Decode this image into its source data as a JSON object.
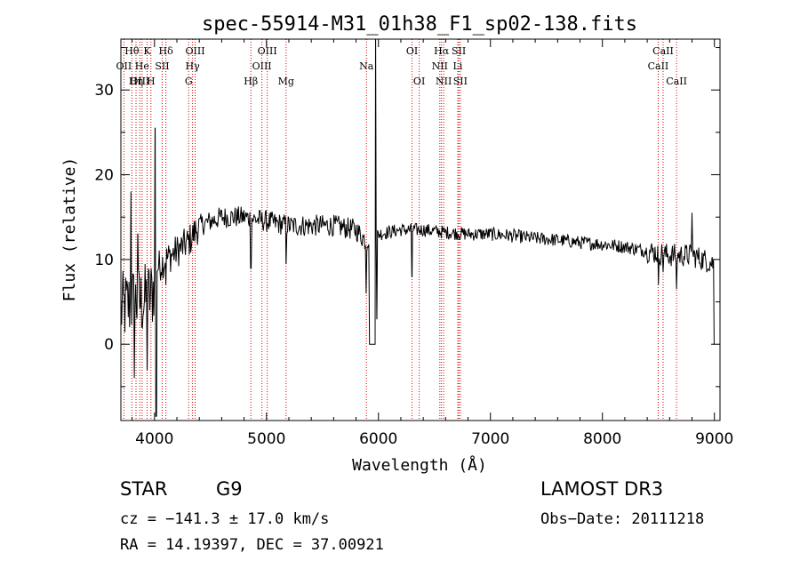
{
  "chart_data": {
    "type": "line",
    "title": "spec-55914-M31_01h38_F1_sp02-138.fits",
    "xlabel": "Wavelength (Å)",
    "ylabel": "Flux (relative)",
    "xlim": [
      3700,
      9050
    ],
    "ylim": [
      -9,
      36
    ],
    "x_ticks": [
      4000,
      5000,
      6000,
      7000,
      8000,
      9000
    ],
    "x_tick_labels": [
      "4000",
      "5000",
      "6000",
      "7000",
      "8000",
      "9000"
    ],
    "y_ticks": [
      0,
      10,
      20,
      30
    ],
    "y_tick_labels": [
      "0",
      "10",
      "20",
      "30"
    ],
    "line_marks": [
      {
        "label": "Hθ",
        "wavelength": 3798,
        "row": 0
      },
      {
        "label": "OII",
        "wavelength": 3727,
        "row": 1
      },
      {
        "label": "OIII",
        "wavelength": 3869,
        "row": 2
      },
      {
        "label": "He",
        "wavelength": 3889,
        "row": 1
      },
      {
        "label": "Hη",
        "wavelength": 3835,
        "row": 2
      },
      {
        "label": "K",
        "wavelength": 3934,
        "row": 0
      },
      {
        "label": "SII",
        "wavelength": 4069,
        "row": 1
      },
      {
        "label": "H",
        "wavelength": 3968,
        "row": 2
      },
      {
        "label": "Hδ",
        "wavelength": 4102,
        "row": 0
      },
      {
        "label": "OIII",
        "wavelength": 4363,
        "row": 0
      },
      {
        "label": "Hγ",
        "wavelength": 4340,
        "row": 1
      },
      {
        "label": "G",
        "wavelength": 4305,
        "row": 2
      },
      {
        "label": "Hβ",
        "wavelength": 4861,
        "row": 2
      },
      {
        "label": "OIII",
        "wavelength": 5007,
        "row": 0
      },
      {
        "label": "OIII",
        "wavelength": 4959,
        "row": 1
      },
      {
        "label": "Mg",
        "wavelength": 5175,
        "row": 2
      },
      {
        "label": "Na",
        "wavelength": 5893,
        "row": 1
      },
      {
        "label": "OI",
        "wavelength": 6300,
        "row": 0
      },
      {
        "label": "OI",
        "wavelength": 6364,
        "row": 2
      },
      {
        "label": "Hα",
        "wavelength": 6563,
        "row": 0
      },
      {
        "label": "NII",
        "wavelength": 6548,
        "row": 1
      },
      {
        "label": "NII",
        "wavelength": 6583,
        "row": 2
      },
      {
        "label": "SII",
        "wavelength": 6717,
        "row": 0
      },
      {
        "label": "Li",
        "wavelength": 6708,
        "row": 1
      },
      {
        "label": "SII",
        "wavelength": 6731,
        "row": 2
      },
      {
        "label": "CaII",
        "wavelength": 8542,
        "row": 0
      },
      {
        "label": "CaII",
        "wavelength": 8498,
        "row": 1
      },
      {
        "label": "CaII",
        "wavelength": 8662,
        "row": 2
      }
    ],
    "continuum": [
      [
        3700,
        4
      ],
      [
        3800,
        5
      ],
      [
        3900,
        5
      ],
      [
        3980,
        6
      ],
      [
        4020,
        9
      ],
      [
        4100,
        10
      ],
      [
        4200,
        11
      ],
      [
        4300,
        12
      ],
      [
        4400,
        14
      ],
      [
        4600,
        15
      ],
      [
        4800,
        15
      ],
      [
        5000,
        14.5
      ],
      [
        5200,
        14
      ],
      [
        5400,
        14
      ],
      [
        5600,
        14
      ],
      [
        5800,
        13.5
      ],
      [
        5900,
        12
      ],
      [
        6000,
        13
      ],
      [
        6200,
        13.5
      ],
      [
        6400,
        13.5
      ],
      [
        6600,
        13.2
      ],
      [
        6800,
        13
      ],
      [
        7000,
        13
      ],
      [
        7200,
        12.8
      ],
      [
        7400,
        12.5
      ],
      [
        7600,
        12.3
      ],
      [
        7800,
        12
      ],
      [
        8000,
        11.8
      ],
      [
        8200,
        11.5
      ],
      [
        8400,
        11
      ],
      [
        8600,
        10.5
      ],
      [
        8800,
        10.5
      ],
      [
        9000,
        9.5
      ]
    ],
    "features": [
      {
        "wavelength": 3790,
        "flux": 18
      },
      {
        "wavelength": 3820,
        "flux": -4
      },
      {
        "wavelength": 3852,
        "flux": 13
      },
      {
        "wavelength": 3935,
        "flux": -3
      },
      {
        "wavelength": 4005,
        "flux": 25.5
      },
      {
        "wavelength": 4015,
        "flux": -8.5
      },
      {
        "wavelength": 4102,
        "flux": 7
      },
      {
        "wavelength": 4861,
        "flux": 9
      },
      {
        "wavelength": 5175,
        "flux": 9.5
      },
      {
        "wavelength": 5890,
        "flux": 6
      },
      {
        "wavelength": 5920,
        "flux": 0
      },
      {
        "wavelength": 5970,
        "flux": 0
      },
      {
        "wavelength": 5975,
        "flux": 36
      },
      {
        "wavelength": 5985,
        "flux": 3
      },
      {
        "wavelength": 6300,
        "flux": 8
      },
      {
        "wavelength": 8500,
        "flux": 7
      },
      {
        "wavelength": 8542,
        "flux": 8.5
      },
      {
        "wavelength": 8662,
        "flux": 6.5
      },
      {
        "wavelength": 8800,
        "flux": 15.5
      },
      {
        "wavelength": 9000,
        "flux": 0
      }
    ]
  },
  "info": {
    "object_class": "STAR",
    "subclass": "G9",
    "survey": "LAMOST DR3",
    "cz": "cz = −141.3 ± 17.0 km/s",
    "obs_date": "Obs−Date: 20111218",
    "coords": "RA =  14.19397, DEC =  37.00921"
  }
}
